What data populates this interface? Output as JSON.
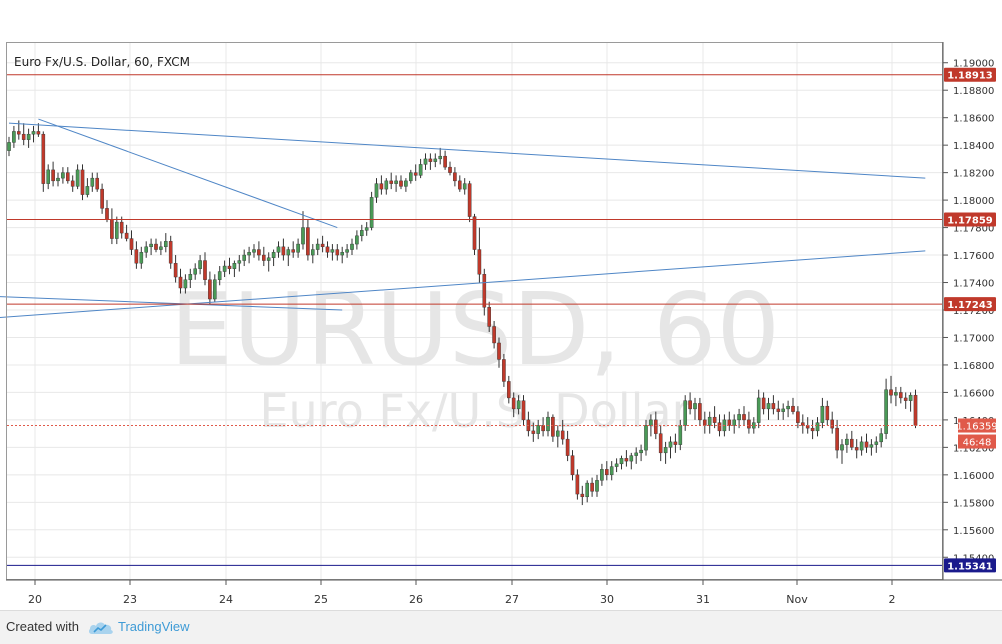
{
  "chart_data": {
    "type": "candlestick",
    "title": "Euro Fx/U.S. Dollar, 60, FXCM",
    "watermark": {
      "symbol": "EURUSD, 60",
      "description": "Euro Fx/U.S. Dollar"
    },
    "ylim": [
      1.153,
      1.191
    ],
    "y_ticks": [
      "1.19000",
      "1.18800",
      "1.18600",
      "1.18400",
      "1.18200",
      "1.18000",
      "1.17800",
      "1.17600",
      "1.17400",
      "1.17200",
      "1.17000",
      "1.16800",
      "1.16600",
      "1.16400",
      "1.16200",
      "1.16000",
      "1.15800",
      "1.15600",
      "1.15400"
    ],
    "x_ticks": [
      "20",
      "23",
      "24",
      "25",
      "26",
      "27",
      "30",
      "31",
      "Nov",
      "2"
    ],
    "grid": true,
    "colors": {
      "up": "#4a9a57",
      "down": "#c0392b",
      "level_line": "#c0392b",
      "trend_line": "#4f86c6",
      "support_line": "#1a1a8c",
      "grid": "#e8e8e8"
    },
    "horizontal_levels": [
      {
        "price": 1.18913,
        "label": "1.18913",
        "color": "#c0392b"
      },
      {
        "price": 1.17859,
        "label": "1.17859",
        "color": "#c0392b"
      },
      {
        "price": 1.17243,
        "label": "1.17243",
        "color": "#c0392b"
      },
      {
        "price": 1.15341,
        "label": "1.15341",
        "color": "#1a1a8c"
      }
    ],
    "current_price": {
      "price": 1.16359,
      "label": "1.16359",
      "countdown": "46:48",
      "color": "#e05a4a"
    },
    "trend_lines": [
      {
        "start": [
          0,
          1.1856
        ],
        "end": [
          187,
          1.1816
        ]
      },
      {
        "start": [
          6,
          1.1859
        ],
        "end": [
          67,
          1.178
        ]
      },
      {
        "start": [
          -4,
          1.1714
        ],
        "end": [
          187,
          1.1763
        ]
      },
      {
        "start": [
          -4,
          1.173
        ],
        "end": [
          68,
          1.172
        ]
      }
    ],
    "candles": [
      [
        1.1836,
        1.1846,
        1.1832,
        1.1842
      ],
      [
        1.1842,
        1.1854,
        1.1838,
        1.185
      ],
      [
        1.185,
        1.1858,
        1.1844,
        1.1848
      ],
      [
        1.1848,
        1.1856,
        1.184,
        1.1844
      ],
      [
        1.1844,
        1.1852,
        1.1838,
        1.1848
      ],
      [
        1.1848,
        1.1854,
        1.1842,
        1.185
      ],
      [
        1.185,
        1.1856,
        1.1846,
        1.1848
      ],
      [
        1.1848,
        1.185,
        1.1806,
        1.1812
      ],
      [
        1.1812,
        1.1826,
        1.1808,
        1.1822
      ],
      [
        1.1822,
        1.1828,
        1.181,
        1.1814
      ],
      [
        1.1814,
        1.182,
        1.181,
        1.1816
      ],
      [
        1.1816,
        1.1824,
        1.1812,
        1.182
      ],
      [
        1.182,
        1.1824,
        1.1812,
        1.1814
      ],
      [
        1.1814,
        1.1818,
        1.1806,
        1.181
      ],
      [
        1.181,
        1.1826,
        1.1808,
        1.1822
      ],
      [
        1.1822,
        1.1826,
        1.18,
        1.1804
      ],
      [
        1.1804,
        1.1816,
        1.1802,
        1.181
      ],
      [
        1.181,
        1.182,
        1.1806,
        1.1816
      ],
      [
        1.1816,
        1.182,
        1.1806,
        1.1808
      ],
      [
        1.1808,
        1.1812,
        1.179,
        1.1794
      ],
      [
        1.1794,
        1.18,
        1.1784,
        1.1786
      ],
      [
        1.1786,
        1.1794,
        1.1768,
        1.1772
      ],
      [
        1.1772,
        1.1788,
        1.1768,
        1.1784
      ],
      [
        1.1784,
        1.1788,
        1.1772,
        1.1776
      ],
      [
        1.1776,
        1.1782,
        1.177,
        1.1772
      ],
      [
        1.1772,
        1.1778,
        1.176,
        1.1764
      ],
      [
        1.1764,
        1.177,
        1.175,
        1.1754
      ],
      [
        1.1754,
        1.1766,
        1.175,
        1.1762
      ],
      [
        1.1762,
        1.177,
        1.1758,
        1.1766
      ],
      [
        1.1766,
        1.1772,
        1.176,
        1.1768
      ],
      [
        1.1768,
        1.1772,
        1.1762,
        1.1764
      ],
      [
        1.1764,
        1.177,
        1.176,
        1.1766
      ],
      [
        1.1766,
        1.1776,
        1.1762,
        1.177
      ],
      [
        1.177,
        1.1774,
        1.175,
        1.1754
      ],
      [
        1.1754,
        1.176,
        1.174,
        1.1744
      ],
      [
        1.1744,
        1.175,
        1.1732,
        1.1736
      ],
      [
        1.1736,
        1.1746,
        1.1732,
        1.1742
      ],
      [
        1.1742,
        1.175,
        1.1736,
        1.1746
      ],
      [
        1.1746,
        1.1754,
        1.1742,
        1.175
      ],
      [
        1.175,
        1.176,
        1.1746,
        1.1756
      ],
      [
        1.1756,
        1.1762,
        1.1738,
        1.1742
      ],
      [
        1.1742,
        1.1748,
        1.1724,
        1.1728
      ],
      [
        1.1728,
        1.1746,
        1.1726,
        1.1742
      ],
      [
        1.1742,
        1.1752,
        1.1738,
        1.1748
      ],
      [
        1.1748,
        1.1756,
        1.1744,
        1.1752
      ],
      [
        1.1752,
        1.1758,
        1.1746,
        1.175
      ],
      [
        1.175,
        1.1756,
        1.1744,
        1.1754
      ],
      [
        1.1754,
        1.176,
        1.1748,
        1.1756
      ],
      [
        1.1756,
        1.1764,
        1.1752,
        1.176
      ],
      [
        1.176,
        1.1766,
        1.1754,
        1.1762
      ],
      [
        1.1762,
        1.1768,
        1.1758,
        1.1764
      ],
      [
        1.1764,
        1.177,
        1.1756,
        1.176
      ],
      [
        1.176,
        1.1766,
        1.1752,
        1.1756
      ],
      [
        1.1756,
        1.1762,
        1.1748,
        1.1758
      ],
      [
        1.1758,
        1.1764,
        1.1752,
        1.1762
      ],
      [
        1.1762,
        1.177,
        1.1758,
        1.1766
      ],
      [
        1.1766,
        1.1772,
        1.1756,
        1.176
      ],
      [
        1.176,
        1.1766,
        1.1752,
        1.1764
      ],
      [
        1.1764,
        1.177,
        1.1758,
        1.1762
      ],
      [
        1.1762,
        1.1772,
        1.1758,
        1.1768
      ],
      [
        1.1768,
        1.1792,
        1.1764,
        1.178
      ],
      [
        1.178,
        1.1786,
        1.1756,
        1.176
      ],
      [
        1.176,
        1.1768,
        1.1754,
        1.1764
      ],
      [
        1.1764,
        1.1772,
        1.176,
        1.1768
      ],
      [
        1.1768,
        1.1774,
        1.1762,
        1.1766
      ],
      [
        1.1766,
        1.177,
        1.1758,
        1.1762
      ],
      [
        1.1762,
        1.1768,
        1.1756,
        1.1764
      ],
      [
        1.1764,
        1.1768,
        1.1756,
        1.176
      ],
      [
        1.176,
        1.1766,
        1.1754,
        1.1762
      ],
      [
        1.1762,
        1.1768,
        1.1758,
        1.1764
      ],
      [
        1.1764,
        1.1772,
        1.176,
        1.1768
      ],
      [
        1.1768,
        1.1778,
        1.1764,
        1.1774
      ],
      [
        1.1774,
        1.1782,
        1.177,
        1.1778
      ],
      [
        1.1778,
        1.1784,
        1.1774,
        1.178
      ],
      [
        1.178,
        1.1806,
        1.1778,
        1.1802
      ],
      [
        1.1802,
        1.1816,
        1.1798,
        1.1812
      ],
      [
        1.1812,
        1.1818,
        1.1804,
        1.1808
      ],
      [
        1.1808,
        1.1816,
        1.1804,
        1.1814
      ],
      [
        1.1814,
        1.182,
        1.1808,
        1.1812
      ],
      [
        1.1812,
        1.1818,
        1.1806,
        1.1814
      ],
      [
        1.1814,
        1.1818,
        1.1808,
        1.181
      ],
      [
        1.181,
        1.1816,
        1.1806,
        1.1814
      ],
      [
        1.1814,
        1.1822,
        1.1812,
        1.182
      ],
      [
        1.182,
        1.1826,
        1.1814,
        1.1818
      ],
      [
        1.1818,
        1.183,
        1.1816,
        1.1826
      ],
      [
        1.1826,
        1.1834,
        1.1822,
        1.183
      ],
      [
        1.183,
        1.1834,
        1.1822,
        1.1828
      ],
      [
        1.1828,
        1.1834,
        1.1824,
        1.183
      ],
      [
        1.183,
        1.1838,
        1.1826,
        1.1832
      ],
      [
        1.1832,
        1.1836,
        1.1822,
        1.1824
      ],
      [
        1.1824,
        1.1828,
        1.1818,
        1.182
      ],
      [
        1.182,
        1.1824,
        1.181,
        1.1814
      ],
      [
        1.1814,
        1.1818,
        1.1806,
        1.1808
      ],
      [
        1.1808,
        1.1816,
        1.1804,
        1.1812
      ],
      [
        1.1812,
        1.1814,
        1.1784,
        1.1788
      ],
      [
        1.1788,
        1.179,
        1.176,
        1.1764
      ],
      [
        1.1764,
        1.178,
        1.174,
        1.1746
      ],
      [
        1.1746,
        1.175,
        1.1716,
        1.1722
      ],
      [
        1.1722,
        1.1726,
        1.1704,
        1.1708
      ],
      [
        1.1708,
        1.1712,
        1.1692,
        1.1696
      ],
      [
        1.1696,
        1.17,
        1.1678,
        1.1684
      ],
      [
        1.1684,
        1.1688,
        1.1664,
        1.1668
      ],
      [
        1.1668,
        1.1672,
        1.1652,
        1.1656
      ],
      [
        1.1656,
        1.166,
        1.1642,
        1.1648
      ],
      [
        1.1648,
        1.1658,
        1.1644,
        1.1654
      ],
      [
        1.1654,
        1.1658,
        1.1636,
        1.164
      ],
      [
        1.164,
        1.1646,
        1.1628,
        1.1632
      ],
      [
        1.1632,
        1.1638,
        1.1624,
        1.163
      ],
      [
        1.163,
        1.164,
        1.1626,
        1.1636
      ],
      [
        1.1636,
        1.1642,
        1.1628,
        1.1632
      ],
      [
        1.1632,
        1.1646,
        1.1628,
        1.1642
      ],
      [
        1.1642,
        1.1644,
        1.1624,
        1.1628
      ],
      [
        1.1628,
        1.1636,
        1.162,
        1.1632
      ],
      [
        1.1632,
        1.164,
        1.1622,
        1.1626
      ],
      [
        1.1626,
        1.1632,
        1.161,
        1.1614
      ],
      [
        1.1614,
        1.1618,
        1.1596,
        1.16
      ],
      [
        1.16,
        1.1604,
        1.1582,
        1.1586
      ],
      [
        1.1586,
        1.1592,
        1.1578,
        1.1584
      ],
      [
        1.1584,
        1.1596,
        1.158,
        1.1594
      ],
      [
        1.1594,
        1.1598,
        1.1584,
        1.1588
      ],
      [
        1.1588,
        1.16,
        1.1584,
        1.1596
      ],
      [
        1.1596,
        1.1608,
        1.1592,
        1.1604
      ],
      [
        1.1604,
        1.161,
        1.1596,
        1.16
      ],
      [
        1.16,
        1.161,
        1.1596,
        1.1606
      ],
      [
        1.1606,
        1.1612,
        1.1602,
        1.1608
      ],
      [
        1.1608,
        1.1614,
        1.1604,
        1.1612
      ],
      [
        1.1612,
        1.1618,
        1.1606,
        1.161
      ],
      [
        1.161,
        1.1616,
        1.1604,
        1.1614
      ],
      [
        1.1614,
        1.162,
        1.1608,
        1.1616
      ],
      [
        1.1616,
        1.1622,
        1.161,
        1.1618
      ],
      [
        1.1618,
        1.164,
        1.1614,
        1.1636
      ],
      [
        1.1636,
        1.1644,
        1.1628,
        1.164
      ],
      [
        1.164,
        1.1646,
        1.1626,
        1.163
      ],
      [
        1.163,
        1.1636,
        1.161,
        1.1616
      ],
      [
        1.1616,
        1.1624,
        1.1608,
        1.162
      ],
      [
        1.162,
        1.1628,
        1.1612,
        1.1624
      ],
      [
        1.1624,
        1.163,
        1.1616,
        1.1622
      ],
      [
        1.1622,
        1.164,
        1.1618,
        1.1636
      ],
      [
        1.1636,
        1.1658,
        1.1632,
        1.1654
      ],
      [
        1.1654,
        1.166,
        1.1644,
        1.1648
      ],
      [
        1.1648,
        1.1656,
        1.164,
        1.1652
      ],
      [
        1.1652,
        1.1656,
        1.1636,
        1.164
      ],
      [
        1.164,
        1.1646,
        1.163,
        1.1636
      ],
      [
        1.1636,
        1.1646,
        1.163,
        1.1642
      ],
      [
        1.1642,
        1.165,
        1.1634,
        1.1638
      ],
      [
        1.1638,
        1.1644,
        1.1628,
        1.1632
      ],
      [
        1.1632,
        1.1644,
        1.1628,
        1.164
      ],
      [
        1.164,
        1.1646,
        1.1632,
        1.1636
      ],
      [
        1.1636,
        1.1644,
        1.163,
        1.164
      ],
      [
        1.164,
        1.1648,
        1.1634,
        1.1644
      ],
      [
        1.1644,
        1.165,
        1.1636,
        1.164
      ],
      [
        1.164,
        1.1646,
        1.163,
        1.1634
      ],
      [
        1.1634,
        1.1642,
        1.163,
        1.1638
      ],
      [
        1.1638,
        1.1662,
        1.1634,
        1.1656
      ],
      [
        1.1656,
        1.166,
        1.1644,
        1.1648
      ],
      [
        1.1648,
        1.1656,
        1.164,
        1.1652
      ],
      [
        1.1652,
        1.1658,
        1.1644,
        1.1648
      ],
      [
        1.1648,
        1.1654,
        1.164,
        1.1646
      ],
      [
        1.1646,
        1.1652,
        1.164,
        1.1648
      ],
      [
        1.1648,
        1.1654,
        1.1642,
        1.165
      ],
      [
        1.165,
        1.1656,
        1.1644,
        1.1646
      ],
      [
        1.1646,
        1.165,
        1.1634,
        1.1638
      ],
      [
        1.1638,
        1.1644,
        1.163,
        1.1636
      ],
      [
        1.1636,
        1.1642,
        1.163,
        1.1634
      ],
      [
        1.1634,
        1.164,
        1.1626,
        1.1632
      ],
      [
        1.1632,
        1.1642,
        1.1628,
        1.1638
      ],
      [
        1.1638,
        1.1656,
        1.1634,
        1.165
      ],
      [
        1.165,
        1.1654,
        1.1636,
        1.164
      ],
      [
        1.164,
        1.1646,
        1.163,
        1.1634
      ],
      [
        1.1634,
        1.164,
        1.1612,
        1.1618
      ],
      [
        1.1618,
        1.1626,
        1.1608,
        1.1622
      ],
      [
        1.1622,
        1.163,
        1.1616,
        1.1626
      ],
      [
        1.1626,
        1.1632,
        1.1618,
        1.162
      ],
      [
        1.162,
        1.1626,
        1.1612,
        1.1618
      ],
      [
        1.1618,
        1.1628,
        1.1614,
        1.1624
      ],
      [
        1.1624,
        1.163,
        1.1616,
        1.162
      ],
      [
        1.162,
        1.1626,
        1.1614,
        1.1622
      ],
      [
        1.1622,
        1.1628,
        1.1616,
        1.1624
      ],
      [
        1.1624,
        1.1634,
        1.162,
        1.163
      ],
      [
        1.163,
        1.167,
        1.1626,
        1.1662
      ],
      [
        1.1662,
        1.1672,
        1.1652,
        1.1658
      ],
      [
        1.1658,
        1.1664,
        1.165,
        1.166
      ],
      [
        1.166,
        1.1664,
        1.1652,
        1.1656
      ],
      [
        1.1656,
        1.166,
        1.1648,
        1.1654
      ],
      [
        1.1654,
        1.166,
        1.1646,
        1.1658
      ],
      [
        1.1658,
        1.1662,
        1.1634,
        1.1636
      ]
    ]
  },
  "footer": {
    "created_with": "Created with",
    "brand": "TradingView"
  }
}
